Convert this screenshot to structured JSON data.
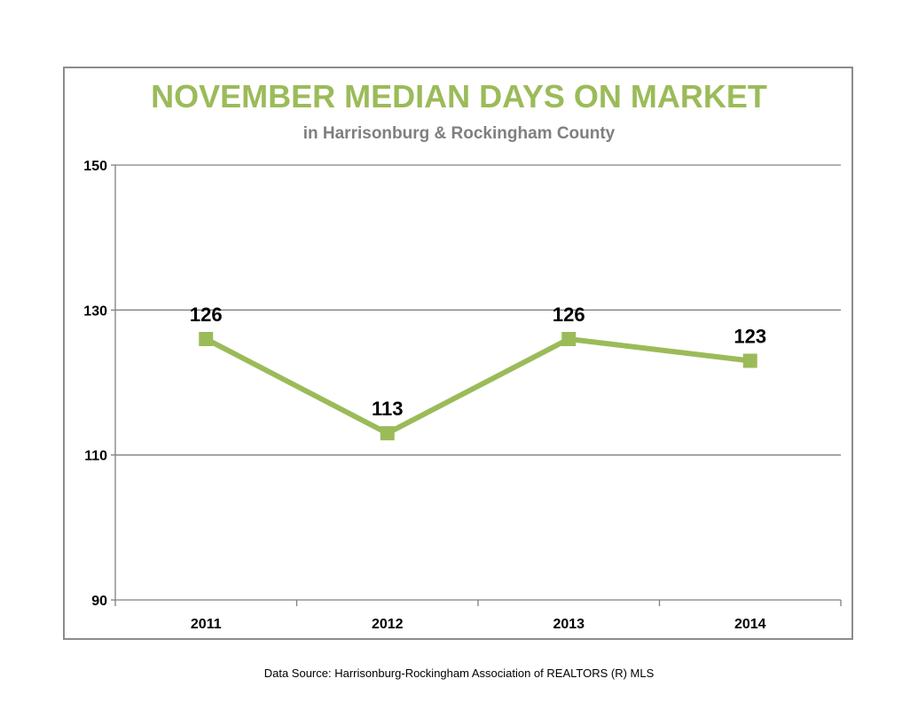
{
  "chart_data": {
    "type": "line",
    "title": "NOVEMBER MEDIAN DAYS ON MARKET",
    "subtitle": "in Harrisonburg  & Rockingham County",
    "categories": [
      "2011",
      "2012",
      "2013",
      "2014"
    ],
    "series": [
      {
        "values": [
          126,
          113,
          126,
          123
        ]
      }
    ],
    "data_labels": [
      "126",
      "113",
      "126",
      "123"
    ],
    "y_ticks": [
      90,
      110,
      130,
      150
    ],
    "y_tick_labels": [
      "90",
      "110",
      "130",
      "150"
    ],
    "ylim": [
      90,
      150
    ],
    "grid": true,
    "legend": "none",
    "marker": "square",
    "colors": {
      "series": "#9bbb59",
      "title": "#9bbb59",
      "subtitle": "#7f7f7f",
      "grid": "#808080"
    }
  },
  "footer": {
    "source": "Data Source: Harrisonburg-Rockingham Association of REALTORS (R) MLS"
  }
}
